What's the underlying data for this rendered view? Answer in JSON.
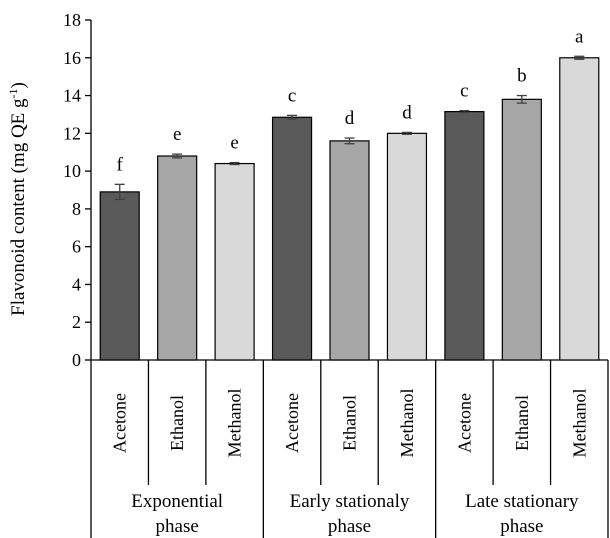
{
  "chart_data": {
    "type": "bar",
    "ylabel": "Flavonoid content (mg QE g",
    "ylabel_sup": "-1",
    "ylabel_close": ")",
    "ylim": [
      0,
      18
    ],
    "yticks": [
      0,
      2,
      4,
      6,
      8,
      10,
      12,
      14,
      16,
      18
    ],
    "grid": false,
    "legend": "none",
    "groups": [
      {
        "lines": [
          "Exponential",
          "phase"
        ],
        "categories": [
          "Acetone",
          "Ethanol",
          "Methanol"
        ]
      },
      {
        "lines": [
          "Early stationaly",
          "phase"
        ],
        "categories": [
          "Acetone",
          "Ethanol",
          "Methanol"
        ]
      },
      {
        "lines": [
          "Late stationary",
          "phase"
        ],
        "categories": [
          "Acetone",
          "Ethanol",
          "Methanol"
        ]
      }
    ],
    "bars": [
      {
        "group": 0,
        "category": "Acetone",
        "value": 8.9,
        "error": 0.4,
        "letter": "f",
        "color": "#595959"
      },
      {
        "group": 0,
        "category": "Ethanol",
        "value": 10.8,
        "error": 0.1,
        "letter": "e",
        "color": "#a6a6a6"
      },
      {
        "group": 0,
        "category": "Methanol",
        "value": 10.4,
        "error": 0.05,
        "letter": "e",
        "color": "#d9d9d9"
      },
      {
        "group": 1,
        "category": "Acetone",
        "value": 12.85,
        "error": 0.1,
        "letter": "c",
        "color": "#595959"
      },
      {
        "group": 1,
        "category": "Ethanol",
        "value": 11.6,
        "error": 0.15,
        "letter": "d",
        "color": "#a6a6a6"
      },
      {
        "group": 1,
        "category": "Methanol",
        "value": 12.0,
        "error": 0.05,
        "letter": "d",
        "color": "#d9d9d9"
      },
      {
        "group": 2,
        "category": "Acetone",
        "value": 13.15,
        "error": 0.05,
        "letter": "c",
        "color": "#595959"
      },
      {
        "group": 2,
        "category": "Ethanol",
        "value": 13.8,
        "error": 0.2,
        "letter": "b",
        "color": "#a6a6a6"
      },
      {
        "group": 2,
        "category": "Methanol",
        "value": 16.0,
        "error": 0.08,
        "letter": "a",
        "color": "#d9d9d9"
      }
    ]
  }
}
